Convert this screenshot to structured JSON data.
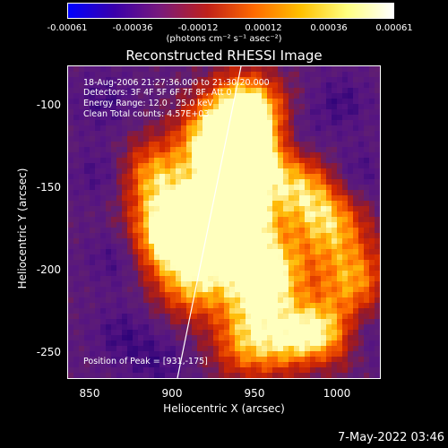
{
  "colorbar": {
    "ticks": [
      "-0.00061",
      "-0.00036",
      "-0.00012",
      "0.00012",
      "0.00036",
      "0.00061"
    ],
    "units": "(photons cm⁻² s⁻¹ asec⁻²)",
    "gradient": [
      "#0000ff",
      "#3a00aa",
      "#7a1a7a",
      "#c0201a",
      "#ff6a00",
      "#ffc000",
      "#ffff80",
      "#ffffff"
    ]
  },
  "title": "Reconstructed RHESSI Image",
  "annotations": {
    "time_range": "18-Aug-2006 21:27:36.000 to 21:30:20.000",
    "detectors": "Detectors: 3F 4F 5F 6F 7F 8F, Att 0",
    "energy": "Energy Range: 12.0 - 25.0 keV",
    "clean": "Clean     Total counts: 4.57E+03",
    "peak": "Position of Peak = [931,-175]"
  },
  "axes": {
    "xlabel": "Heliocentric X (arcsec)",
    "ylabel": "Heliocentric Y (arcsec)",
    "xticks": [
      "850",
      "900",
      "950",
      "1000"
    ],
    "yticks": [
      "-100",
      "-150",
      "-200",
      "-250"
    ]
  },
  "timestamp": "7-May-2022 03:46"
}
